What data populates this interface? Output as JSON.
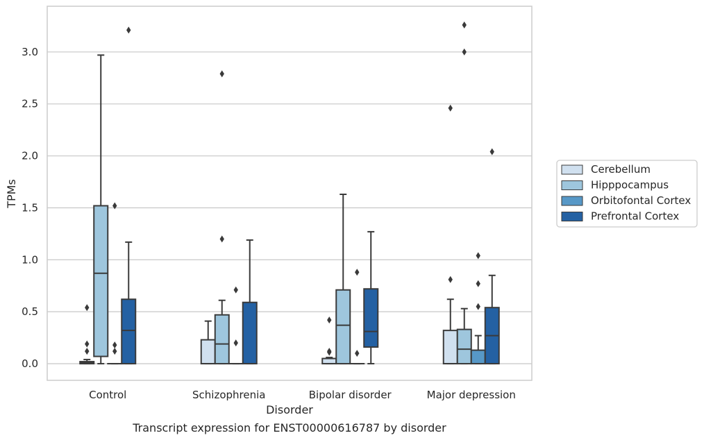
{
  "caption": "Transcript expression for ENST00000616787 by disorder",
  "colors": {
    "Cerebellum": "#d0e0ef",
    "Hipppocampus": "#9ec6dd",
    "Orbitofontal Cortex": "#5798c7",
    "Prefrontal Cortex": "#2461a3",
    "edge": "#3a3a3a",
    "grid": "#cccccc"
  },
  "chart_data": {
    "type": "box",
    "xlabel": "Disorder",
    "ylabel": "TPMs",
    "categories": [
      "Control",
      "Schizophrenia",
      "Bipolar disorder",
      "Major depression"
    ],
    "ylim": [
      -0.16,
      3.44
    ],
    "yticks": [
      0.0,
      0.5,
      1.0,
      1.5,
      2.0,
      2.5,
      3.0
    ],
    "ytick_labels": [
      "0.0",
      "0.5",
      "1.0",
      "1.5",
      "2.0",
      "2.5",
      "3.0"
    ],
    "grid": true,
    "legend_position": "right",
    "series": [
      {
        "name": "Cerebellum",
        "boxes": [
          {
            "whislo": 0.0,
            "q1": 0.0,
            "med": 0.01,
            "q3": 0.02,
            "whishi": 0.04,
            "fliers": [
              0.54,
              0.19,
              0.12
            ]
          },
          {
            "whislo": 0.0,
            "q1": 0.0,
            "med": 0.0,
            "q3": 0.23,
            "whishi": 0.41,
            "fliers": []
          },
          {
            "whislo": 0.0,
            "q1": 0.0,
            "med": 0.0,
            "q3": 0.05,
            "whishi": 0.06,
            "fliers": [
              0.42,
              0.12,
              0.11
            ]
          },
          {
            "whislo": 0.0,
            "q1": 0.0,
            "med": 0.0,
            "q3": 0.32,
            "whishi": 0.62,
            "fliers": [
              0.81,
              2.46
            ]
          }
        ]
      },
      {
        "name": "Hipppocampus",
        "boxes": [
          {
            "whislo": 0.0,
            "q1": 0.07,
            "med": 0.87,
            "q3": 1.52,
            "whishi": 2.97,
            "fliers": []
          },
          {
            "whislo": 0.0,
            "q1": 0.0,
            "med": 0.19,
            "q3": 0.47,
            "whishi": 0.61,
            "fliers": [
              1.2,
              2.79
            ]
          },
          {
            "whislo": 0.0,
            "q1": 0.0,
            "med": 0.37,
            "q3": 0.71,
            "whishi": 1.63,
            "fliers": []
          },
          {
            "whislo": 0.0,
            "q1": 0.0,
            "med": 0.14,
            "q3": 0.33,
            "whishi": 0.53,
            "fliers": [
              3.0,
              3.26
            ]
          }
        ]
      },
      {
        "name": "Orbitofontal Cortex",
        "boxes": [
          {
            "whislo": 0.0,
            "q1": 0.0,
            "med": 0.0,
            "q3": 0.0,
            "whishi": 0.0,
            "fliers": [
              1.52,
              0.18,
              0.12
            ]
          },
          {
            "whislo": 0.0,
            "q1": 0.0,
            "med": 0.0,
            "q3": 0.0,
            "whishi": 0.0,
            "fliers": [
              0.71,
              0.2
            ]
          },
          {
            "whislo": 0.0,
            "q1": 0.0,
            "med": 0.0,
            "q3": 0.0,
            "whishi": 0.0,
            "fliers": [
              0.88,
              0.1
            ]
          },
          {
            "whislo": 0.0,
            "q1": 0.0,
            "med": 0.0,
            "q3": 0.13,
            "whishi": 0.27,
            "fliers": [
              1.04,
              0.77,
              0.55
            ]
          }
        ]
      },
      {
        "name": "Prefrontal Cortex",
        "boxes": [
          {
            "whislo": 0.0,
            "q1": 0.0,
            "med": 0.32,
            "q3": 0.62,
            "whishi": 1.17,
            "fliers": [
              3.21
            ]
          },
          {
            "whislo": 0.0,
            "q1": 0.0,
            "med": 0.0,
            "q3": 0.59,
            "whishi": 1.19,
            "fliers": []
          },
          {
            "whislo": 0.0,
            "q1": 0.16,
            "med": 0.31,
            "q3": 0.72,
            "whishi": 1.27,
            "fliers": []
          },
          {
            "whislo": 0.0,
            "q1": 0.0,
            "med": 0.27,
            "q3": 0.54,
            "whishi": 0.85,
            "fliers": [
              2.04
            ]
          }
        ]
      }
    ]
  }
}
